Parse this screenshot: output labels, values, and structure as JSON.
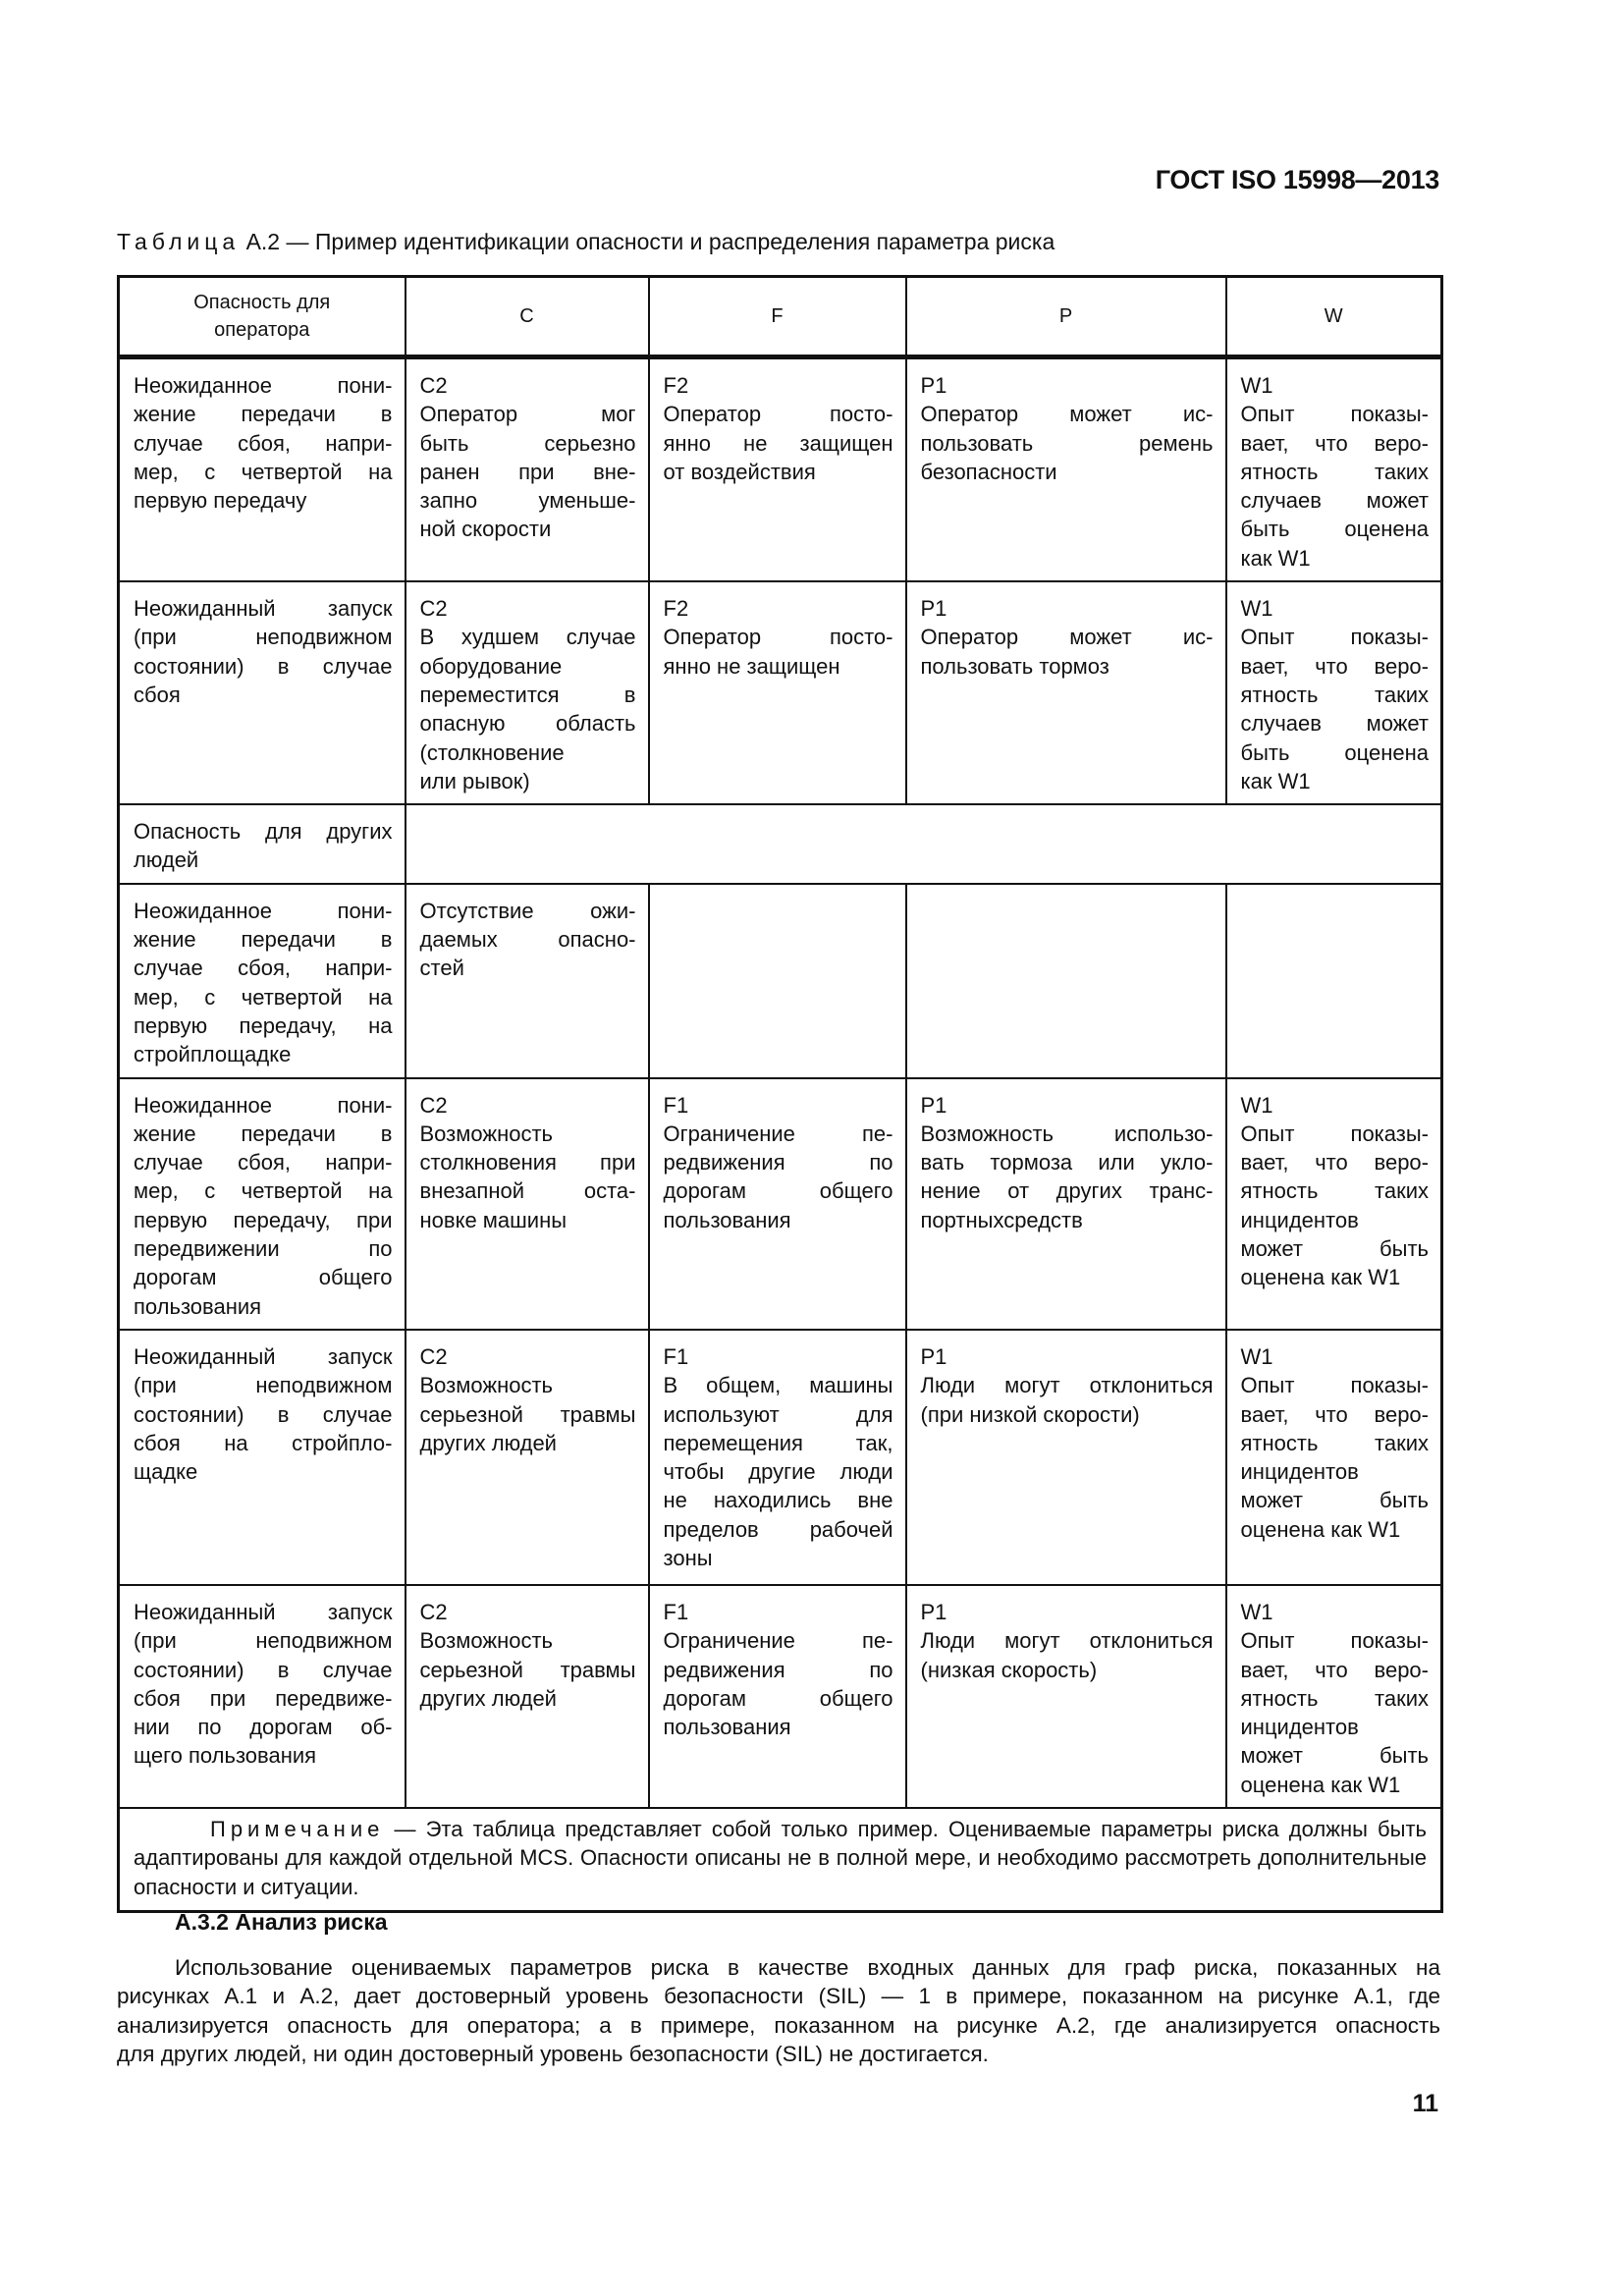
{
  "header": {
    "doc_id": "ГОСТ ISO 15998—2013"
  },
  "caption": {
    "label": "Таблица",
    "text": "А.2 — Пример идентификации опасности и распределения параметра риска"
  },
  "table": {
    "columns": [
      "Опасность для оператора",
      "C",
      "F",
      "P",
      "W"
    ],
    "rows": [
      {
        "cells": [
          [
            "Неожиданное пони-",
            "жение передачи в",
            "случае сбоя, напри-",
            "мер, с четвертой на",
            "первую передачу"
          ],
          [
            "C2",
            "Оператор мог",
            "быть серьезно",
            "ранен при вне-",
            "запно уменьше-",
            "ной скорости"
          ],
          [
            "F2",
            "Оператор посто-",
            "янно не защищен",
            "от воздействия"
          ],
          [
            "P1",
            "Оператор может ис-",
            "пользовать ремень",
            "безопасности"
          ],
          [
            "W1",
            "Опыт показы-",
            "вает, что веро-",
            "ятность таких",
            "случаев может",
            "быть оценена",
            "как W1"
          ]
        ]
      },
      {
        "cells": [
          [
            "Неожиданный запуск",
            "(при неподвижном",
            "состоянии) в случае",
            "сбоя"
          ],
          [
            "C2",
            "В худшем случае",
            "оборудование",
            "переместится в",
            "опасную область",
            "(столкновение",
            "или рывок)"
          ],
          [
            "F2",
            "Оператор посто-",
            "янно не защищен"
          ],
          [
            "P1",
            "Оператор может ис-",
            "пользовать тормоз"
          ],
          [
            "W1",
            "Опыт показы-",
            "вает, что веро-",
            "ятность таких",
            "случаев может",
            "быть оценена",
            "как W1"
          ]
        ]
      },
      {
        "section": [
          "Опасность для других",
          "людей"
        ]
      },
      {
        "cells": [
          [
            "Неожиданное пони-",
            "жение передачи в",
            "случае сбоя, напри-",
            "мер, с четвертой на",
            "первую передачу, на",
            "стройплощадке"
          ],
          [
            "Отсутствие ожи-",
            "даемых опасно-",
            "стей"
          ],
          [],
          [],
          []
        ]
      },
      {
        "cells": [
          [
            "Неожиданное пони-",
            "жение передачи в",
            "случае сбоя, напри-",
            "мер, с четвертой на",
            "первую передачу, при",
            "передвижении по",
            "дорогам общего",
            "пользования"
          ],
          [
            "C2",
            "Возможность",
            "столкновения при",
            "внезапной оста-",
            "новке машины"
          ],
          [
            "F1",
            "Ограничение пе-",
            "редвижения по",
            "дорогам общего",
            "пользования"
          ],
          [
            "P1",
            "Возможность использо-",
            "вать тормоза или укло-",
            "нение от других транс-",
            "портныхсредств"
          ],
          [
            "W1",
            "Опыт показы-",
            "вает, что веро-",
            "ятность таких",
            "инцидентов",
            "может быть",
            "оценена как W1"
          ]
        ]
      },
      {
        "cells": [
          [
            "Неожиданный запуск",
            "(при неподвижном",
            "состоянии) в случае",
            "сбоя на стройпло-",
            "щадке"
          ],
          [
            "C2",
            "Возможность",
            "серьезной травмы",
            "других людей"
          ],
          [
            "F1",
            "В общем, машины",
            "используют для",
            "перемещения так,",
            "чтобы другие люди",
            "не находились вне",
            "пределов рабочей",
            "зоны"
          ],
          [
            "P1",
            "Люди могут отклониться",
            "(при низкой скорости)"
          ],
          [
            "W1",
            "Опыт показы-",
            "вает, что веро-",
            "ятность таких",
            "инцидентов",
            "может быть",
            "оценена как W1"
          ]
        ]
      },
      {
        "cells": [
          [
            "Неожиданный запуск",
            "(при неподвижном",
            "состоянии) в случае",
            "сбоя при передвиже-",
            "нии по дорогам об-",
            "щего пользования"
          ],
          [
            "C2",
            "Возможность",
            "серьезной травмы",
            "других людей"
          ],
          [
            "F1",
            "Ограничение пе-",
            "редвижения по",
            "дорогам общего",
            "пользования"
          ],
          [
            "P1",
            "Люди могут отклониться",
            "(низкая скорость)"
          ],
          [
            "W1",
            "Опыт показы-",
            "вает, что веро-",
            "ятность таких",
            "инцидентов",
            "может быть",
            "оценена как W1"
          ]
        ]
      }
    ],
    "note": {
      "label": "Примечание",
      "text": "— Эта таблица представляет собой только пример. Оцениваемые параметры риска должны быть адаптированы для каждой отдельной MCS. Опасности описаны не в полной мере, и необходимо рассмотреть дополнительные опасности и ситуации."
    }
  },
  "section": {
    "heading": "А.3.2 Анализ риска",
    "lines": [
      "Использование оцениваемых параметров риска в качестве входных данных для граф риска, показанных на",
      "рисунках А.1 и А.2, дает достоверный уровень безопасности (SIL) — 1 в примере, показанном на рисунке А.1, где",
      "анализируется опасность для оператора; а в примере, показанном на рисунке А.2, где анализируется опасность",
      "для других людей, ни один достоверный уровень безопасности (SIL) не достигается."
    ]
  },
  "page_number": "11"
}
